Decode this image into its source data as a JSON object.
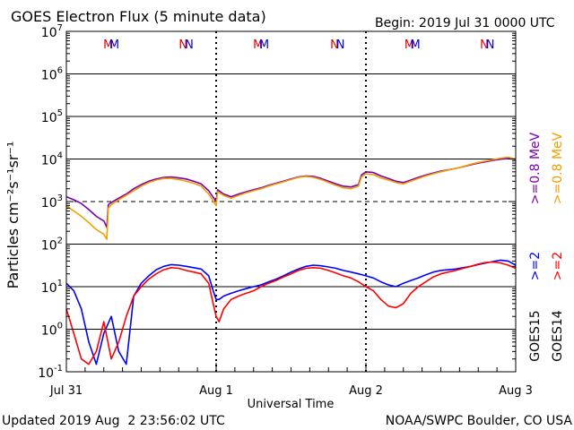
{
  "chart_data": {
    "type": "line",
    "title": "GOES Electron Flux (5 minute data)",
    "begin_label": "Begin: 2019 Jul 31 0000 UTC",
    "xlabel": "Universal Time",
    "ylabel": "Particles cm⁻²s⁻¹sr⁻¹",
    "x_ticks": [
      "Jul 31",
      "Aug 1",
      "Aug 2",
      "Aug 3"
    ],
    "xlim_days": [
      0,
      3
    ],
    "yscale": "log",
    "ylim": [
      0.1,
      10000000
    ],
    "y_ticks": [
      {
        "base": "10",
        "exp": "7"
      },
      {
        "base": "10",
        "exp": "6"
      },
      {
        "base": "10",
        "exp": "5"
      },
      {
        "base": "10",
        "exp": "4"
      },
      {
        "base": "10",
        "exp": "3"
      },
      {
        "base": "10",
        "exp": "2"
      },
      {
        "base": "10",
        "exp": "1"
      },
      {
        "base": "10",
        "exp": "0"
      },
      {
        "base": "10",
        "exp": "-1"
      }
    ],
    "threshold_lines": [
      1000
    ],
    "top_markers": {
      "text": [
        "M",
        "M",
        "N",
        "N",
        "M",
        "M",
        "N",
        "N",
        "M",
        "M",
        "N",
        "N"
      ],
      "x_days": [
        0.28,
        0.32,
        0.78,
        0.82,
        1.28,
        1.32,
        1.79,
        1.83,
        2.29,
        2.33,
        2.79,
        2.83
      ],
      "colors": [
        "#e00000",
        "#0000e0",
        "#e00000",
        "#0000e0",
        "#e00000",
        "#0000e0",
        "#e00000",
        "#0000e0",
        "#e00000",
        "#0000e0",
        "#e00000",
        "#0000e0"
      ]
    },
    "legend": {
      "satellites": [
        "GOES15",
        "GOES14"
      ],
      "entries": [
        {
          "text": ">=0.8 MeV",
          "color": "#7a00b4"
        },
        {
          "text": ">=0.8 MeV",
          "color": "#f0a000"
        },
        {
          "text": ">=2",
          "color": "#0000ff"
        },
        {
          "text": ">=2",
          "color": "#ff0000"
        }
      ]
    },
    "series": [
      {
        "color": "#7a00b4",
        "x": [
          0,
          0.05,
          0.1,
          0.15,
          0.2,
          0.25,
          0.27,
          0.28,
          0.3,
          0.35,
          0.4,
          0.45,
          0.5,
          0.55,
          0.6,
          0.65,
          0.7,
          0.75,
          0.8,
          0.85,
          0.9,
          0.95,
          1.0,
          1.01,
          1.05,
          1.1,
          1.15,
          1.2,
          1.25,
          1.3,
          1.35,
          1.4,
          1.45,
          1.5,
          1.55,
          1.6,
          1.65,
          1.7,
          1.75,
          1.8,
          1.85,
          1.9,
          1.95,
          1.97,
          2.0,
          2.05,
          2.1,
          2.15,
          2.2,
          2.25,
          2.3,
          2.35,
          2.4,
          2.45,
          2.5,
          2.55,
          2.6,
          2.65,
          2.7,
          2.75,
          2.8,
          2.85,
          2.9,
          2.95,
          3.0
        ],
        "y": [
          1300,
          1100,
          900,
          650,
          450,
          350,
          250,
          850,
          950,
          1200,
          1500,
          2000,
          2500,
          3000,
          3400,
          3700,
          3800,
          3600,
          3400,
          3000,
          2600,
          1800,
          1000,
          1900,
          1500,
          1300,
          1500,
          1700,
          1900,
          2100,
          2400,
          2700,
          3000,
          3400,
          3800,
          4000,
          3900,
          3500,
          3000,
          2600,
          2300,
          2200,
          2500,
          4200,
          5000,
          4800,
          4000,
          3500,
          3000,
          2800,
          3200,
          3700,
          4200,
          4700,
          5200,
          5600,
          6000,
          6600,
          7300,
          8000,
          8600,
          9300,
          9900,
          10300,
          9800
        ]
      },
      {
        "color": "#f0a000",
        "x": [
          0,
          0.05,
          0.1,
          0.15,
          0.2,
          0.25,
          0.27,
          0.28,
          0.3,
          0.35,
          0.4,
          0.45,
          0.5,
          0.55,
          0.6,
          0.65,
          0.7,
          0.75,
          0.8,
          0.85,
          0.9,
          0.95,
          1.0,
          1.01,
          1.05,
          1.1,
          1.15,
          1.2,
          1.25,
          1.3,
          1.35,
          1.4,
          1.45,
          1.5,
          1.55,
          1.6,
          1.65,
          1.7,
          1.75,
          1.8,
          1.85,
          1.9,
          1.95,
          1.97,
          2.0,
          2.05,
          2.1,
          2.15,
          2.2,
          2.25,
          2.3,
          2.35,
          2.4,
          2.45,
          2.5,
          2.55,
          2.6,
          2.65,
          2.7,
          2.75,
          2.8,
          2.85,
          2.9,
          2.95,
          3.0
        ],
        "y": [
          800,
          600,
          450,
          320,
          220,
          170,
          130,
          700,
          850,
          1100,
          1400,
          1800,
          2300,
          2800,
          3200,
          3500,
          3500,
          3300,
          3000,
          2700,
          2300,
          1500,
          800,
          1700,
          1400,
          1200,
          1400,
          1600,
          1800,
          2000,
          2300,
          2600,
          2900,
          3300,
          3700,
          3900,
          3700,
          3300,
          2800,
          2400,
          2100,
          2000,
          2300,
          3800,
          4500,
          4300,
          3600,
          3200,
          2800,
          2600,
          3000,
          3500,
          4000,
          4500,
          5000,
          5500,
          6000,
          6700,
          7500,
          8300,
          9000,
          9700,
          10500,
          11000,
          10000
        ]
      },
      {
        "color": "#0000ff",
        "x": [
          0,
          0.05,
          0.1,
          0.15,
          0.2,
          0.25,
          0.3,
          0.35,
          0.4,
          0.45,
          0.5,
          0.55,
          0.6,
          0.65,
          0.7,
          0.75,
          0.8,
          0.85,
          0.9,
          0.95,
          0.98,
          1.0,
          1.02,
          1.05,
          1.1,
          1.15,
          1.2,
          1.25,
          1.3,
          1.35,
          1.4,
          1.45,
          1.5,
          1.55,
          1.6,
          1.65,
          1.7,
          1.75,
          1.8,
          1.85,
          1.9,
          1.95,
          2.0,
          2.05,
          2.1,
          2.15,
          2.2,
          2.25,
          2.3,
          2.35,
          2.4,
          2.45,
          2.5,
          2.55,
          2.6,
          2.65,
          2.7,
          2.75,
          2.8,
          2.85,
          2.9,
          2.95,
          3.0
        ],
        "y": [
          12,
          8,
          3,
          0.5,
          0.15,
          0.8,
          2,
          0.3,
          0.15,
          6,
          12,
          18,
          25,
          30,
          33,
          32,
          30,
          28,
          26,
          18,
          8,
          5,
          5,
          6,
          7,
          8,
          9,
          10,
          11,
          13,
          15,
          18,
          22,
          26,
          30,
          32,
          31,
          29,
          27,
          24,
          22,
          20,
          18,
          16,
          13,
          11,
          10,
          12,
          14,
          16,
          19,
          22,
          24,
          25,
          26,
          28,
          30,
          33,
          36,
          39,
          42,
          40,
          32
        ]
      },
      {
        "color": "#ff0000",
        "x": [
          0,
          0.05,
          0.1,
          0.15,
          0.2,
          0.25,
          0.3,
          0.35,
          0.4,
          0.45,
          0.5,
          0.55,
          0.6,
          0.65,
          0.7,
          0.75,
          0.8,
          0.85,
          0.9,
          0.95,
          0.98,
          1.0,
          1.02,
          1.05,
          1.1,
          1.15,
          1.2,
          1.25,
          1.3,
          1.35,
          1.4,
          1.45,
          1.5,
          1.55,
          1.6,
          1.65,
          1.7,
          1.75,
          1.8,
          1.85,
          1.9,
          1.95,
          2.0,
          2.05,
          2.1,
          2.15,
          2.2,
          2.25,
          2.3,
          2.35,
          2.4,
          2.45,
          2.5,
          2.55,
          2.6,
          2.65,
          2.7,
          2.75,
          2.8,
          2.85,
          2.9,
          2.95,
          3.0
        ],
        "y": [
          3,
          0.8,
          0.2,
          0.15,
          0.3,
          1.5,
          0.2,
          0.5,
          2,
          6,
          10,
          15,
          20,
          25,
          28,
          27,
          24,
          22,
          20,
          12,
          4,
          2,
          1.5,
          3,
          5,
          6,
          7,
          8,
          10,
          12,
          14,
          17,
          20,
          24,
          27,
          28,
          27,
          24,
          21,
          18,
          16,
          13,
          10,
          8,
          5,
          3.5,
          3.2,
          4,
          7,
          10,
          13,
          17,
          20,
          22,
          24,
          27,
          30,
          34,
          37,
          38,
          36,
          32,
          27
        ]
      }
    ]
  },
  "footer": {
    "updated": "Updated 2019 Aug  2 23:56:02 UTC",
    "source": "NOAA/SWPC Boulder, CO USA"
  }
}
